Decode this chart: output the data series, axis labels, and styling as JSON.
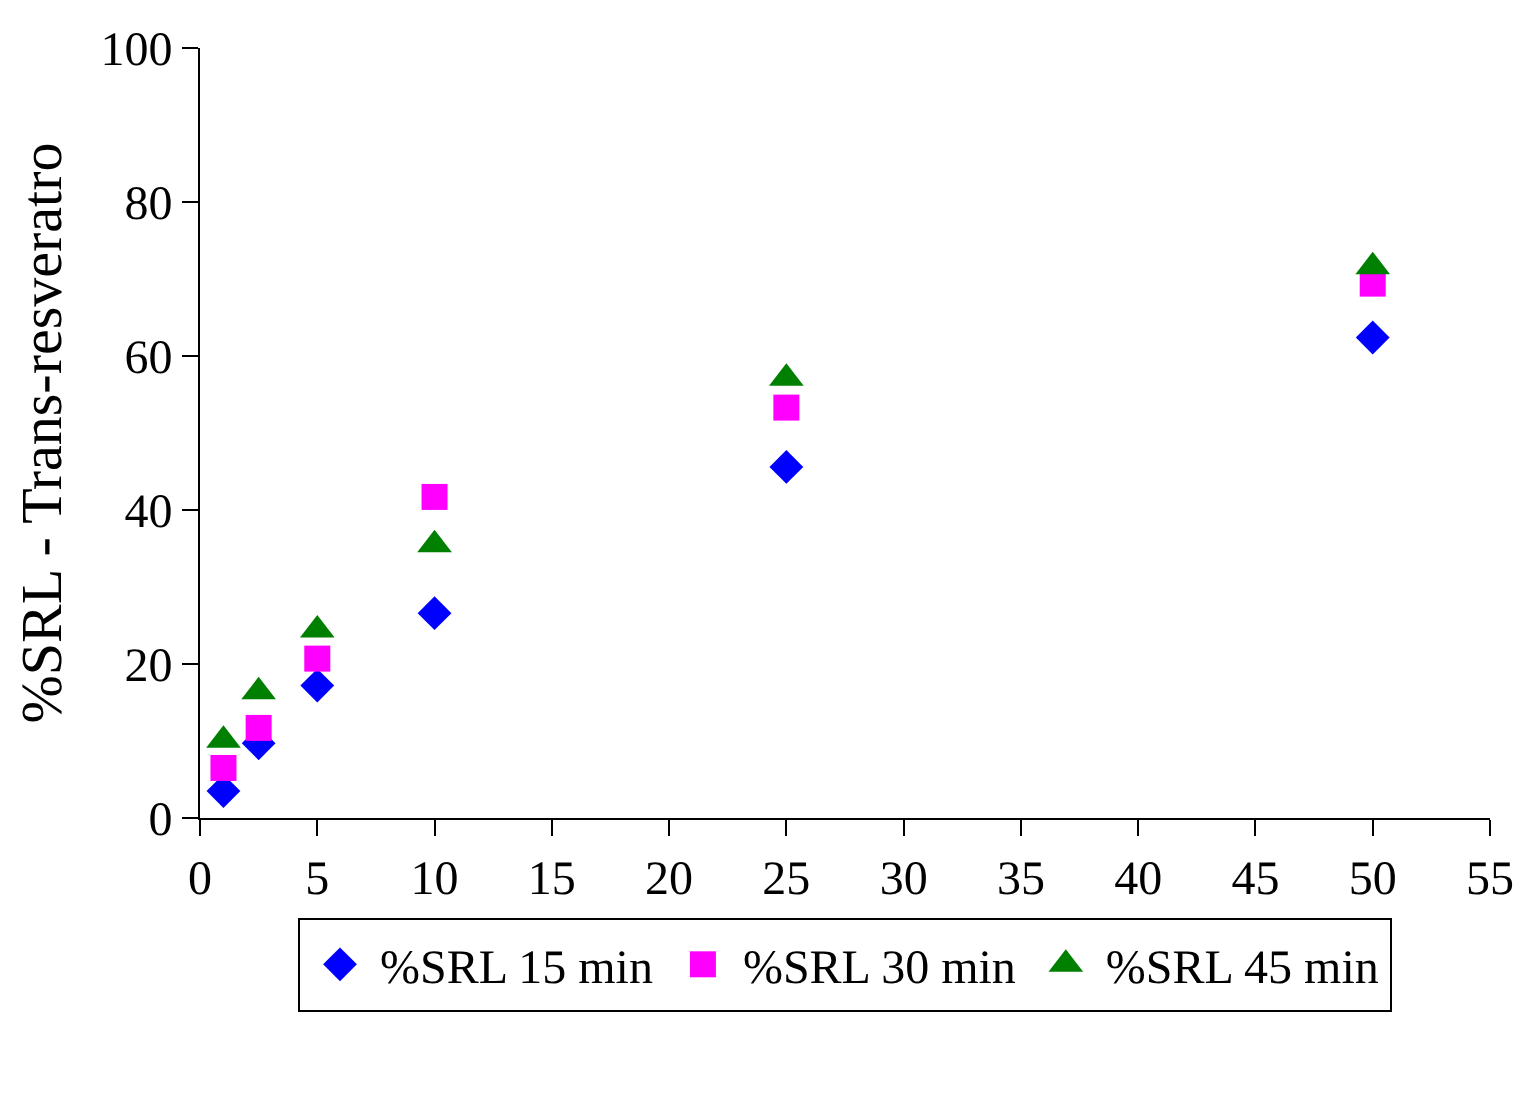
{
  "chart_data": {
    "type": "scatter",
    "ylabel": "%SRL - Trans-resveratro",
    "x": [
      1,
      2.5,
      5,
      10,
      25,
      50
    ],
    "series": [
      {
        "name": "%SRL 15 min",
        "color": "#0000ff",
        "marker": "diamond",
        "values": [
          3.5,
          9.7,
          17.2,
          26.6,
          45.6,
          62.4
        ]
      },
      {
        "name": "%SRL 30 min",
        "color": "#ff00ff",
        "marker": "square",
        "values": [
          6.5,
          11.7,
          20.7,
          41.7,
          53.3,
          69.4
        ]
      },
      {
        "name": "%SRL 45 min",
        "color": "#008000",
        "marker": "triangle",
        "values": [
          10.1,
          16.4,
          24.4,
          35.5,
          57.1,
          71.6
        ]
      }
    ],
    "xlim": [
      0,
      55
    ],
    "xticks": [
      0,
      5,
      10,
      15,
      20,
      25,
      30,
      35,
      40,
      45,
      50,
      55
    ],
    "ylim": [
      0,
      100
    ],
    "yticks": [
      0,
      20,
      40,
      60,
      80,
      100
    ],
    "grid": false,
    "legend": "bottom"
  }
}
